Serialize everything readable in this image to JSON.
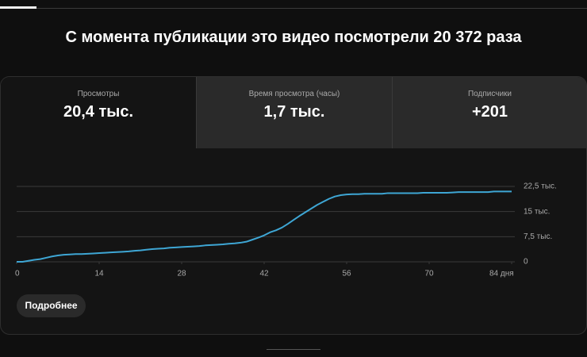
{
  "header": {
    "title": "С момента публикации это видео посмотрели 20 372 раза"
  },
  "tabs": [
    {
      "label": "Просмотры",
      "value": "20,4 тыс."
    },
    {
      "label": "Время просмотра (часы)",
      "value": "1,7 тыс."
    },
    {
      "label": "Подписчики",
      "value": "+201"
    }
  ],
  "chart_data": {
    "type": "line",
    "color": "#3ea6d4",
    "grid": true,
    "x": [
      0,
      1,
      2,
      3,
      4,
      5,
      6,
      7,
      8,
      9,
      10,
      11,
      12,
      13,
      14,
      15,
      16,
      17,
      18,
      19,
      20,
      21,
      22,
      23,
      24,
      25,
      26,
      27,
      28,
      29,
      30,
      31,
      32,
      33,
      34,
      35,
      36,
      37,
      38,
      39,
      40,
      41,
      42,
      43,
      44,
      45,
      46,
      47,
      48,
      49,
      50,
      51,
      52,
      53,
      54,
      55,
      56,
      57,
      58,
      59,
      60,
      61,
      62,
      63,
      64,
      65,
      66,
      67,
      68,
      69,
      70,
      71,
      72,
      73,
      74,
      75,
      76,
      77,
      78,
      79,
      80,
      81,
      82,
      83,
      84
    ],
    "values": [
      0,
      0,
      300,
      600,
      800,
      1200,
      1600,
      1900,
      2100,
      2200,
      2300,
      2300,
      2400,
      2500,
      2600,
      2700,
      2800,
      2900,
      3000,
      3100,
      3300,
      3400,
      3600,
      3800,
      3900,
      4000,
      4200,
      4300,
      4400,
      4500,
      4600,
      4700,
      4900,
      5000,
      5100,
      5200,
      5400,
      5500,
      5700,
      6000,
      6600,
      7200,
      7900,
      8800,
      9400,
      10200,
      11300,
      12500,
      13700,
      14800,
      15900,
      17000,
      17900,
      18800,
      19500,
      19900,
      20100,
      20200,
      20200,
      20300,
      20300,
      20300,
      20300,
      20500,
      20500,
      20500,
      20500,
      20500,
      20500,
      20600,
      20600,
      20600,
      20600,
      20600,
      20700,
      20800,
      20800,
      20800,
      20800,
      20800,
      20800,
      21000,
      21000,
      21000,
      21000
    ],
    "xlim": [
      0,
      84
    ],
    "xticks": [
      0,
      14,
      28,
      42,
      56,
      70,
      {
        "value": 84,
        "label": "84 дня"
      }
    ],
    "ylim": [
      0,
      22500
    ],
    "yticks": [
      0,
      {
        "value": 7500,
        "label": "7,5 тыс."
      },
      {
        "value": 15000,
        "label": "15 тыс."
      },
      {
        "value": 22500,
        "label": "22,5 тыс."
      }
    ]
  },
  "button": {
    "label": "Подробнее"
  }
}
